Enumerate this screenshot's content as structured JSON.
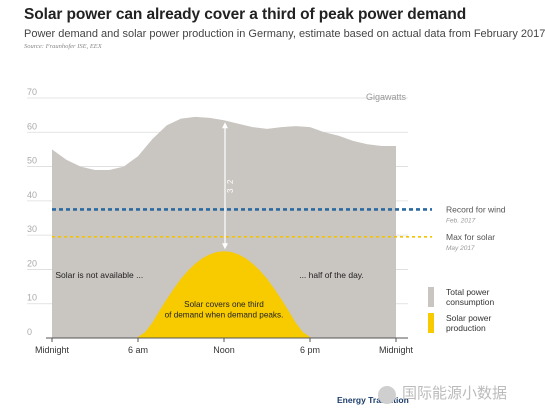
{
  "header": {
    "title": "Solar power can already cover a third of peak power demand",
    "subtitle": "Power demand and solar power production in Germany, estimate based on actual data from February 2017",
    "source": "Source: Fraunhofer ISE, EEX"
  },
  "chart_data": {
    "type": "area",
    "x_unit": "hour of day",
    "ylabel": "Gigawatts",
    "ylim": [
      0,
      70
    ],
    "yticks": [
      0,
      10,
      20,
      30,
      40,
      50,
      60,
      70
    ],
    "xlim": [
      0,
      24
    ],
    "xticks": [
      {
        "x": 0,
        "label": "Midnight"
      },
      {
        "x": 6,
        "label": "6 am"
      },
      {
        "x": 12,
        "label": "Noon"
      },
      {
        "x": 18,
        "label": "6 pm"
      },
      {
        "x": 24,
        "label": "Midnight"
      }
    ],
    "series": [
      {
        "name": "Total power consumption",
        "color": "#c9c5c1",
        "x": [
          0,
          1,
          2,
          3,
          4,
          5,
          6,
          7,
          8,
          9,
          10,
          11,
          12,
          13,
          14,
          15,
          16,
          17,
          18,
          19,
          20,
          21,
          22,
          23,
          24
        ],
        "y": [
          55,
          52,
          50,
          49,
          49,
          50,
          53,
          58,
          62,
          64,
          64.5,
          64.2,
          63.5,
          62.5,
          61.5,
          61,
          61.5,
          61.8,
          61.5,
          60,
          59,
          57.5,
          56.5,
          56,
          56
        ]
      },
      {
        "name": "Solar power production",
        "color": "#f7cb00",
        "x": [
          5.9,
          6.5,
          7,
          7.5,
          8,
          8.5,
          9,
          9.5,
          10,
          10.5,
          11,
          11.5,
          12,
          12.5,
          13,
          13.5,
          14,
          14.5,
          15,
          15.5,
          16,
          16.5,
          17,
          17.5,
          18.1
        ],
        "y": [
          0,
          1.7,
          4.5,
          8,
          11.3,
          14.4,
          17.3,
          19.7,
          21.7,
          23.3,
          24.4,
          25.1,
          25.3,
          25.1,
          24.4,
          23.3,
          21.7,
          19.7,
          17.3,
          14.4,
          11.3,
          8,
          4.5,
          1.7,
          0
        ]
      }
    ],
    "reference_lines": [
      {
        "y": 37.5,
        "label": "Record for wind",
        "sublabel": "Feb. 2017",
        "color": "#2a6aa0"
      },
      {
        "y": 29.5,
        "label": "Max for solar",
        "sublabel": "May 2017",
        "color": "#f4c400"
      }
    ],
    "fraction_marker": {
      "x": 12,
      "y_from": 25.3,
      "y_to": 63.5,
      "label": "2/3"
    },
    "annotations": [
      {
        "text": "Solar is not available ...",
        "x": 3.3,
        "y": 17.5
      },
      {
        "text": "... half of the day.",
        "x": 19.5,
        "y": 17.5
      },
      {
        "text": "Solar covers one third",
        "x": 12,
        "y": 9
      },
      {
        "text": "of demand when demand peaks.",
        "x": 12,
        "y": 6
      }
    ],
    "legend": [
      {
        "label": "Total power",
        "label2": "consumption",
        "color": "#c9c5c1"
      },
      {
        "label": "Solar power",
        "label2": "production",
        "color": "#f7cb00"
      }
    ],
    "legend_position": "right",
    "grid": true
  },
  "footer": {
    "brand": "Energy Transition",
    "watermark": "国际能源小数据"
  }
}
